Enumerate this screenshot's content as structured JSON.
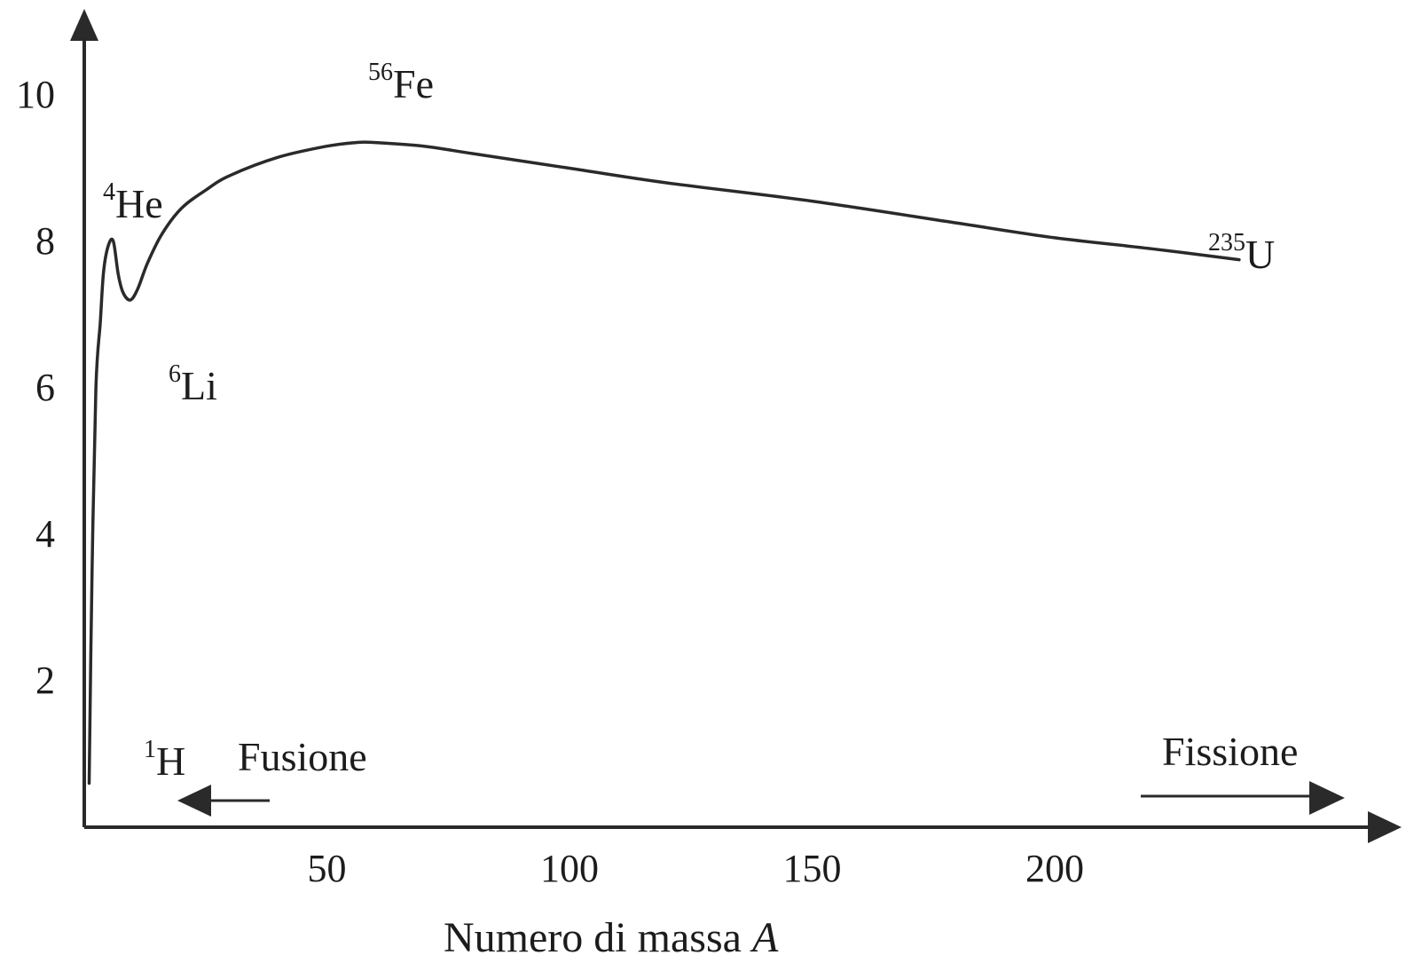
{
  "chart_data": {
    "type": "line",
    "xlabel_main": "Numero di massa ",
    "xlabel_var": "A",
    "ylabel": "",
    "xlim": [
      0,
      248
    ],
    "ylim": [
      0,
      11
    ],
    "x_ticks": [
      {
        "value": 50,
        "label": "50"
      },
      {
        "value": 100,
        "label": "100"
      },
      {
        "value": 150,
        "label": "150"
      },
      {
        "value": 200,
        "label": "200"
      }
    ],
    "y_ticks": [
      {
        "value": 2,
        "label": "2"
      },
      {
        "value": 4,
        "label": "4"
      },
      {
        "value": 6,
        "label": "6"
      },
      {
        "value": 8,
        "label": "8"
      },
      {
        "value": 10,
        "label": "10"
      }
    ],
    "series": [
      {
        "points": [
          [
            1,
            0.6
          ],
          [
            1.6,
            3.5
          ],
          [
            2.4,
            6.0
          ],
          [
            3.3,
            6.9
          ],
          [
            4,
            7.6
          ],
          [
            5,
            7.95
          ],
          [
            6,
            8.0
          ],
          [
            7,
            7.55
          ],
          [
            8,
            7.3
          ],
          [
            9.5,
            7.2
          ],
          [
            11,
            7.35
          ],
          [
            13,
            7.7
          ],
          [
            16,
            8.1
          ],
          [
            20,
            8.45
          ],
          [
            25,
            8.7
          ],
          [
            30,
            8.9
          ],
          [
            40,
            9.15
          ],
          [
            50,
            9.3
          ],
          [
            56,
            9.35
          ],
          [
            60,
            9.35
          ],
          [
            70,
            9.3
          ],
          [
            80,
            9.2
          ],
          [
            100,
            9.0
          ],
          [
            120,
            8.8
          ],
          [
            150,
            8.55
          ],
          [
            180,
            8.25
          ],
          [
            200,
            8.05
          ],
          [
            220,
            7.9
          ],
          [
            238,
            7.75
          ]
        ]
      }
    ],
    "annotations": [
      {
        "mass": "1",
        "symbol": "H"
      },
      {
        "mass": "4",
        "symbol": "He"
      },
      {
        "mass": "6",
        "symbol": "Li"
      },
      {
        "mass": "56",
        "symbol": "Fe"
      },
      {
        "mass": "235",
        "symbol": "U"
      }
    ],
    "arrows": [
      {
        "label": "Fusione",
        "direction": "left"
      },
      {
        "label": "Fissione",
        "direction": "right"
      }
    ]
  }
}
